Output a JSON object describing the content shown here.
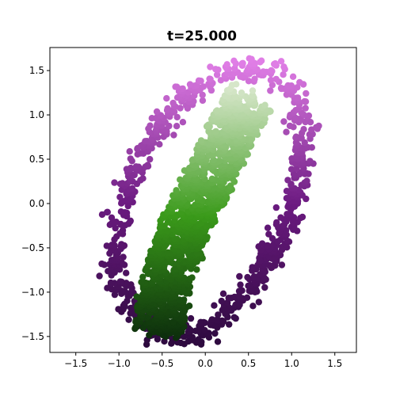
{
  "chart_data": {
    "type": "scatter",
    "title": "t=25.000",
    "xlabel": "",
    "ylabel": "",
    "xlim": [
      -1.8,
      1.75
    ],
    "ylim": [
      -1.68,
      1.76
    ],
    "xticks": [
      -1.5,
      -1.0,
      -0.5,
      0.0,
      0.5,
      1.0,
      1.5
    ],
    "xtick_labels": [
      "−1.5",
      "−1.0",
      "−0.5",
      "0.0",
      "0.5",
      "1.0",
      "1.5"
    ],
    "yticks": [
      -1.5,
      -1.0,
      -0.5,
      0.0,
      0.5,
      1.0,
      1.5
    ],
    "ytick_labels": [
      "−1.5",
      "−1.0",
      "−0.5",
      "0.0",
      "0.5",
      "1.0",
      "1.5"
    ],
    "grid": false,
    "legend": "none",
    "series": [
      {
        "structure": "noisy elliptical ring",
        "center": [
          0.0,
          0.0
        ],
        "ring_spine": [
          [
            -0.55,
            -1.45
          ],
          [
            -0.95,
            -1.1
          ],
          [
            -1.05,
            -0.6
          ],
          [
            -0.95,
            0.0
          ],
          [
            -0.7,
            0.6
          ],
          [
            -0.3,
            1.15
          ],
          [
            0.2,
            1.45
          ],
          [
            0.6,
            1.55
          ],
          [
            1.0,
            1.35
          ],
          [
            1.15,
            0.8
          ],
          [
            1.1,
            0.3
          ],
          [
            0.95,
            -0.2
          ],
          [
            0.7,
            -0.7
          ],
          [
            0.3,
            -1.2
          ],
          [
            -0.05,
            -1.45
          ],
          [
            -0.3,
            -1.52
          ]
        ],
        "ring_noise": 0.07,
        "point_count": 820,
        "color_low": "#2d0a3e",
        "color_mid": "#6b1a80",
        "color_high": "#e07ee6",
        "color_by": "y"
      },
      {
        "structure": "filled diagonal band",
        "center_line": [
          [
            -0.55,
            -1.45
          ],
          [
            -0.45,
            -0.9
          ],
          [
            -0.25,
            -0.3
          ],
          [
            0.05,
            0.3
          ],
          [
            0.35,
            0.9
          ],
          [
            0.55,
            1.2
          ]
        ],
        "band_half_width": 0.28,
        "point_count": 1500,
        "color_low": "#0b2a0c",
        "color_mid": "#3a9a1a",
        "color_high": "#d6e6c9",
        "color_by": "y"
      }
    ],
    "marker_radius_note": "large round markers"
  }
}
